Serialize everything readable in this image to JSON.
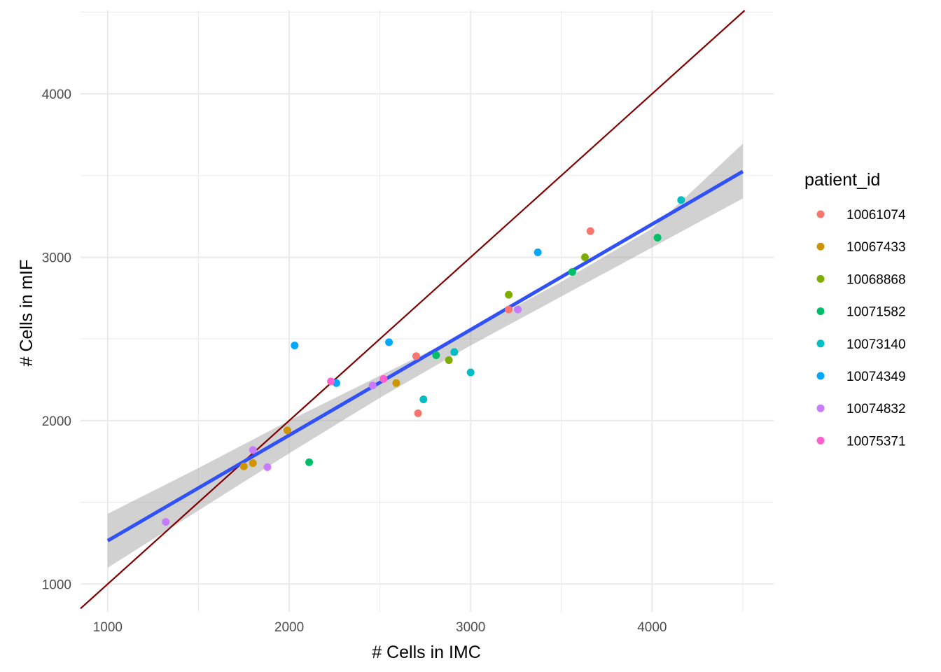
{
  "chart_data": {
    "type": "scatter",
    "title": "",
    "xlabel": "# Cells in IMC",
    "ylabel": "# Cells in mIF",
    "xlim": [
      850,
      4670
    ],
    "ylim": [
      830,
      4510
    ],
    "x_ticks": [
      1000,
      2000,
      3000,
      4000
    ],
    "y_ticks": [
      1000,
      2000,
      3000,
      4000
    ],
    "grid": true,
    "legend_title": "patient_id",
    "legend_position": "right",
    "series": [
      {
        "name": "10061074",
        "color": "#F8766D",
        "points": [
          [
            2700,
            2395
          ],
          [
            2710,
            2045
          ],
          [
            3210,
            2680
          ],
          [
            3660,
            3160
          ]
        ]
      },
      {
        "name": "10067433",
        "color": "#CD9600",
        "points": [
          [
            1750,
            1720
          ],
          [
            1800,
            1740
          ],
          [
            1990,
            1940
          ],
          [
            2590,
            2230
          ]
        ]
      },
      {
        "name": "10068868",
        "color": "#7CAE00",
        "points": [
          [
            2880,
            2370
          ],
          [
            3210,
            2770
          ],
          [
            3630,
            3000
          ]
        ]
      },
      {
        "name": "10071582",
        "color": "#00BE67",
        "points": [
          [
            2110,
            1745
          ],
          [
            2810,
            2400
          ],
          [
            3560,
            2910
          ],
          [
            4030,
            3120
          ]
        ]
      },
      {
        "name": "10073140",
        "color": "#00BFC4",
        "points": [
          [
            2740,
            2130
          ],
          [
            2910,
            2420
          ],
          [
            3000,
            2295
          ],
          [
            4160,
            3350
          ]
        ]
      },
      {
        "name": "10074349",
        "color": "#00A9FF",
        "points": [
          [
            2030,
            2460
          ],
          [
            2260,
            2230
          ],
          [
            2550,
            2480
          ],
          [
            3370,
            3030
          ]
        ]
      },
      {
        "name": "10074832",
        "color": "#C77CFF",
        "points": [
          [
            1320,
            1380
          ],
          [
            1800,
            1820
          ],
          [
            1880,
            1715
          ],
          [
            2460,
            2215
          ],
          [
            3260,
            2680
          ]
        ]
      },
      {
        "name": "10075371",
        "color": "#FF61CC",
        "points": [
          [
            2230,
            2240
          ],
          [
            2520,
            2255
          ]
        ]
      }
    ],
    "identity_line": {
      "color": "#7F0000"
    },
    "fit_line": {
      "color": "#3050F8",
      "x": [
        1000,
        4500
      ],
      "y": [
        1265,
        3525
      ]
    },
    "confidence_band": {
      "color": "#999999",
      "x": [
        1000,
        1500,
        2000,
        2500,
        3000,
        3500,
        4000,
        4500
      ],
      "lower": [
        1100,
        1450,
        1800,
        2140,
        2460,
        2760,
        3060,
        3360
      ],
      "upper": [
        1430,
        1710,
        2000,
        2275,
        2550,
        2850,
        3175,
        3695
      ]
    }
  }
}
